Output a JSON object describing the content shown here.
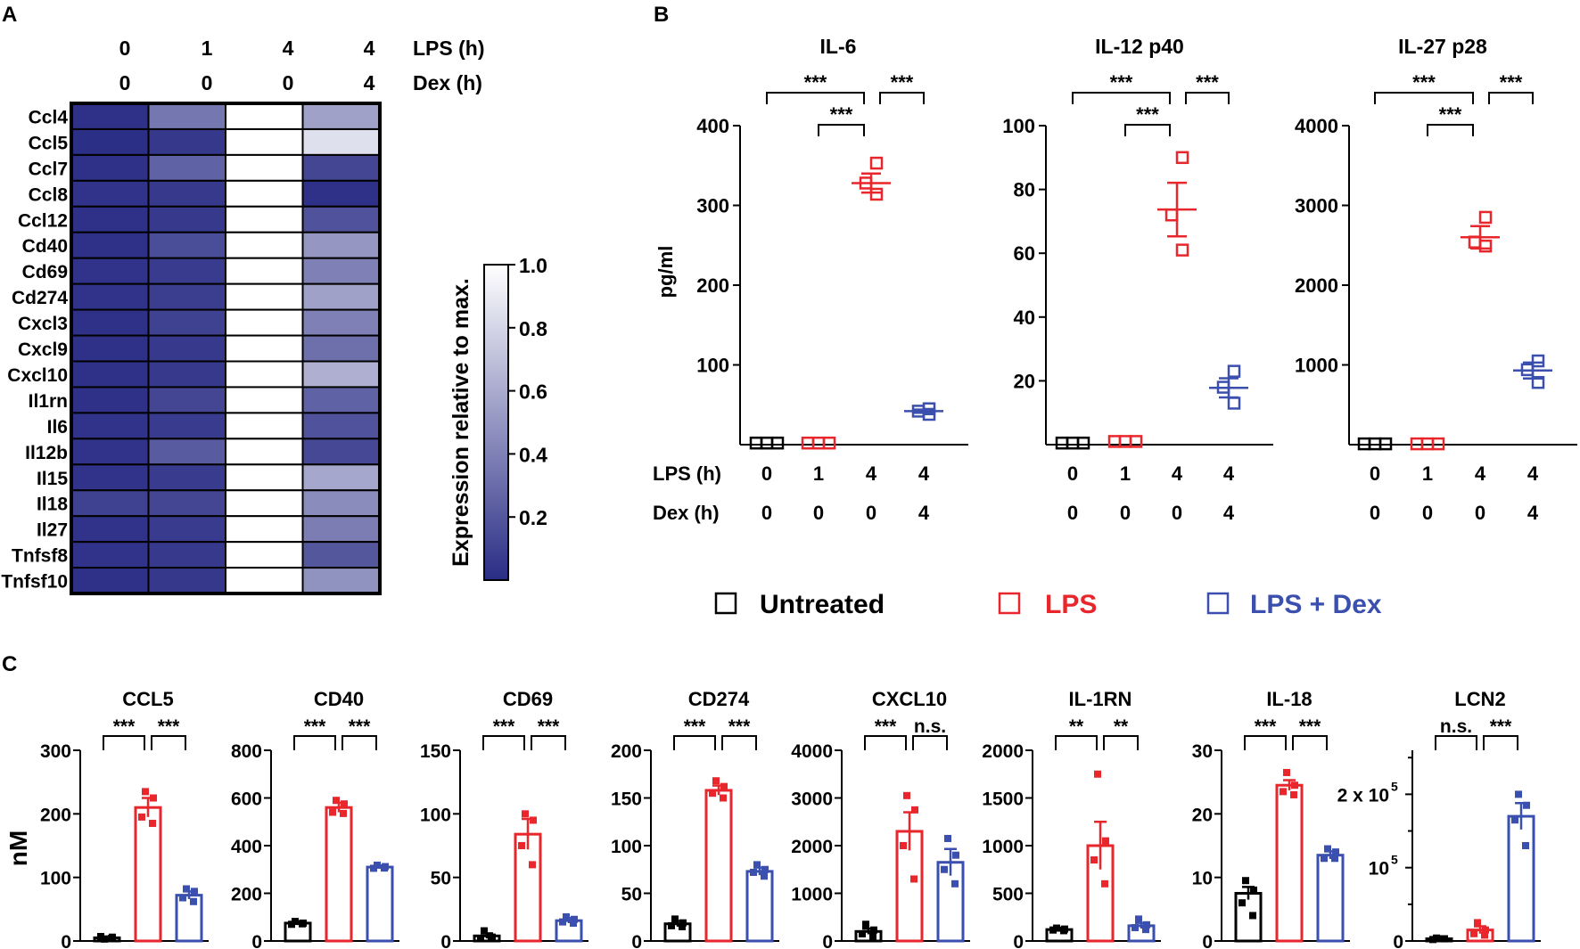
{
  "colors": {
    "untreated": "#000000",
    "lps": "#e8262b",
    "lps_dex": "#3b4fae",
    "heat_low": "#2a2d85",
    "heat_high": "#ffffff"
  },
  "panel_labels": {
    "a": "A",
    "b": "B",
    "c": "C"
  },
  "legend": {
    "untreated": "Untreated",
    "lps": "LPS",
    "lps_dex": "LPS + Dex"
  },
  "conditions": {
    "lps_label": "LPS (h)",
    "dex_label": "Dex (h)",
    "lps": [
      "0",
      "1",
      "4",
      "4"
    ],
    "dex": [
      "0",
      "0",
      "0",
      "4"
    ]
  },
  "chart_data": [
    {
      "type": "heatmap",
      "panel": "A",
      "rows": [
        "Ccl4",
        "Ccl5",
        "Ccl7",
        "Ccl8",
        "Ccl12",
        "Cd40",
        "Cd69",
        "Cd274",
        "Cxcl3",
        "Cxcl9",
        "Cxcl10",
        "Il1rn",
        "Il6",
        "Il12b",
        "Il15",
        "Il18",
        "Il27",
        "Tnfsf8",
        "Tnfsf10"
      ],
      "columns": [
        "LPS 0h / Dex 0h",
        "LPS 1h / Dex 0h",
        "LPS 4h / Dex 0h",
        "LPS 4h / Dex 4h"
      ],
      "values": [
        [
          0.02,
          0.35,
          1.0,
          0.55
        ],
        [
          0.01,
          0.05,
          1.0,
          0.85
        ],
        [
          0.02,
          0.25,
          1.0,
          0.12
        ],
        [
          0.03,
          0.06,
          1.0,
          0.02
        ],
        [
          0.02,
          0.06,
          1.0,
          0.18
        ],
        [
          0.02,
          0.15,
          1.0,
          0.5
        ],
        [
          0.03,
          0.07,
          1.0,
          0.4
        ],
        [
          0.03,
          0.08,
          1.0,
          0.55
        ],
        [
          0.02,
          0.1,
          1.0,
          0.4
        ],
        [
          0.02,
          0.06,
          1.0,
          0.32
        ],
        [
          0.02,
          0.06,
          1.0,
          0.62
        ],
        [
          0.02,
          0.12,
          1.0,
          0.25
        ],
        [
          0.03,
          0.07,
          1.0,
          0.18
        ],
        [
          0.03,
          0.22,
          1.0,
          0.13
        ],
        [
          0.03,
          0.07,
          1.0,
          0.58
        ],
        [
          0.1,
          0.12,
          1.0,
          0.45
        ],
        [
          0.03,
          0.07,
          1.0,
          0.38
        ],
        [
          0.03,
          0.06,
          1.0,
          0.2
        ],
        [
          0.02,
          0.05,
          1.0,
          0.48
        ]
      ],
      "colorbar": {
        "label": "Expression relative to max.",
        "ticks": [
          "1.0",
          "0.8",
          "0.6",
          "0.4",
          "0.2"
        ],
        "tick_values": [
          1.0,
          0.8,
          0.6,
          0.4,
          0.2
        ],
        "range": [
          0,
          1
        ]
      }
    },
    {
      "type": "scatter",
      "panel": "B",
      "title": "IL-6",
      "ylabel": "pg/ml",
      "ylim": [
        0,
        400
      ],
      "yticks": [
        "100",
        "200",
        "300",
        "400"
      ],
      "ytick_values": [
        100,
        200,
        300,
        400
      ],
      "groups": [
        {
          "name": "Untreated",
          "points": [
            2,
            2,
            2
          ],
          "mean": 2,
          "sem": 0
        },
        {
          "name": "LPS 1h",
          "points": [
            2,
            2,
            2
          ],
          "mean": 2,
          "sem": 0
        },
        {
          "name": "LPS 4h",
          "points": [
            353,
            328,
            314
          ],
          "mean": 328,
          "sem": 12
        },
        {
          "name": "LPS + Dex",
          "points": [
            45,
            42,
            38
          ],
          "mean": 42,
          "sem": 2
        }
      ],
      "brackets": [
        {
          "from": 0,
          "to": 2,
          "label": "***",
          "level": 2
        },
        {
          "from": 2,
          "to": 3,
          "label": "***",
          "level": 2
        },
        {
          "from": 1,
          "to": 2,
          "label": "***",
          "level": 1
        }
      ]
    },
    {
      "type": "scatter",
      "panel": "B",
      "title": "IL-12 p40",
      "ylabel": "",
      "ylim": [
        0,
        100
      ],
      "yticks": [
        "20",
        "40",
        "60",
        "80",
        "100"
      ],
      "ytick_values": [
        20,
        40,
        60,
        80,
        100
      ],
      "groups": [
        {
          "name": "Untreated",
          "points": [
            0.5,
            0.5,
            0.5
          ],
          "mean": 0.5,
          "sem": 0
        },
        {
          "name": "LPS 1h",
          "points": [
            1,
            1,
            1
          ],
          "mean": 1,
          "sem": 0
        },
        {
          "name": "LPS 4h",
          "points": [
            90,
            72,
            61
          ],
          "mean": 73.7,
          "sem": 8.4
        },
        {
          "name": "LPS + Dex",
          "points": [
            23,
            18,
            13
          ],
          "mean": 17.8,
          "sem": 3
        }
      ],
      "brackets": [
        {
          "from": 0,
          "to": 2,
          "label": "***",
          "level": 2
        },
        {
          "from": 2,
          "to": 3,
          "label": "***",
          "level": 2
        },
        {
          "from": 1,
          "to": 2,
          "label": "***",
          "level": 1
        }
      ]
    },
    {
      "type": "scatter",
      "panel": "B",
      "title": "IL-27 p28",
      "ylabel": "",
      "ylim": [
        0,
        4000
      ],
      "yticks": [
        "1000",
        "2000",
        "3000",
        "4000"
      ],
      "ytick_values": [
        1000,
        2000,
        3000,
        4000
      ],
      "groups": [
        {
          "name": "Untreated",
          "points": [
            10,
            10,
            10
          ],
          "mean": 10,
          "sem": 0
        },
        {
          "name": "LPS 1h",
          "points": [
            10,
            10,
            10
          ],
          "mean": 10,
          "sem": 0
        },
        {
          "name": "LPS 4h",
          "points": [
            2850,
            2540,
            2490
          ],
          "mean": 2600,
          "sem": 140
        },
        {
          "name": "LPS + Dex",
          "points": [
            1050,
            940,
            780
          ],
          "mean": 930,
          "sem": 100
        }
      ],
      "brackets": [
        {
          "from": 0,
          "to": 2,
          "label": "***",
          "level": 2
        },
        {
          "from": 2,
          "to": 3,
          "label": "***",
          "level": 2
        },
        {
          "from": 1,
          "to": 2,
          "label": "***",
          "level": 1
        }
      ]
    },
    {
      "type": "bar",
      "panel": "C",
      "title": "CCL5",
      "ylabel": "nM",
      "ylim": [
        0,
        300
      ],
      "yticks": [
        "0",
        "100",
        "200",
        "300"
      ],
      "ytick_values": [
        0,
        100,
        200,
        300
      ],
      "bars": [
        {
          "mean": 5,
          "sem": 2,
          "points": [
            3,
            6,
            7,
            4
          ]
        },
        {
          "mean": 210,
          "sem": 15,
          "points": [
            235,
            225,
            195,
            185
          ]
        },
        {
          "mean": 72,
          "sem": 6,
          "points": [
            82,
            78,
            68,
            62
          ]
        }
      ],
      "brackets": [
        {
          "from": 0,
          "to": 1,
          "label": "***"
        },
        {
          "from": 1,
          "to": 2,
          "label": "***"
        }
      ]
    },
    {
      "type": "bar",
      "panel": "C",
      "title": "CD40",
      "ylim": [
        0,
        800
      ],
      "yticks": [
        "0",
        "200",
        "400",
        "600",
        "800"
      ],
      "ytick_values": [
        0,
        200,
        400,
        600,
        800
      ],
      "bars": [
        {
          "mean": 75,
          "sem": 8,
          "points": [
            82,
            75,
            70,
            72
          ]
        },
        {
          "mean": 560,
          "sem": 20,
          "points": [
            590,
            575,
            540,
            535
          ]
        },
        {
          "mean": 310,
          "sem": 6,
          "points": [
            318,
            312,
            305,
            306
          ]
        }
      ],
      "brackets": [
        {
          "from": 0,
          "to": 1,
          "label": "***"
        },
        {
          "from": 1,
          "to": 2,
          "label": "***"
        }
      ]
    },
    {
      "type": "bar",
      "panel": "C",
      "title": "CD69",
      "ylim": [
        0,
        150
      ],
      "yticks": [
        "0",
        "50",
        "100",
        "150"
      ],
      "ytick_values": [
        0,
        50,
        100,
        150
      ],
      "bars": [
        {
          "mean": 4,
          "sem": 2,
          "points": [
            8,
            3,
            2,
            3
          ]
        },
        {
          "mean": 84,
          "sem": 12,
          "points": [
            100,
            95,
            75,
            60
          ]
        },
        {
          "mean": 16,
          "sem": 2,
          "points": [
            19,
            17,
            15,
            14
          ]
        }
      ],
      "brackets": [
        {
          "from": 0,
          "to": 1,
          "label": "***"
        },
        {
          "from": 1,
          "to": 2,
          "label": "***"
        }
      ]
    },
    {
      "type": "bar",
      "panel": "C",
      "title": "CD274",
      "ylim": [
        0,
        200
      ],
      "yticks": [
        "0",
        "50",
        "100",
        "150",
        "200"
      ],
      "ytick_values": [
        0,
        50,
        100,
        150,
        200
      ],
      "bars": [
        {
          "mean": 18,
          "sem": 3,
          "points": [
            23,
            19,
            16,
            15
          ]
        },
        {
          "mean": 158,
          "sem": 5,
          "points": [
            168,
            162,
            155,
            150
          ]
        },
        {
          "mean": 73,
          "sem": 4,
          "points": [
            80,
            75,
            72,
            68
          ]
        }
      ],
      "brackets": [
        {
          "from": 0,
          "to": 1,
          "label": "***"
        },
        {
          "from": 1,
          "to": 2,
          "label": "***"
        }
      ]
    },
    {
      "type": "bar",
      "panel": "C",
      "title": "CXCL10",
      "ylim": [
        0,
        4000
      ],
      "yticks": [
        "0",
        "1000",
        "2000",
        "3000",
        "4000"
      ],
      "ytick_values": [
        0,
        1000,
        2000,
        3000,
        4000
      ],
      "bars": [
        {
          "mean": 200,
          "sem": 60,
          "points": [
            350,
            230,
            150,
            100
          ]
        },
        {
          "mean": 2300,
          "sem": 400,
          "points": [
            3050,
            2750,
            2000,
            1300
          ]
        },
        {
          "mean": 1650,
          "sem": 280,
          "points": [
            2150,
            1800,
            1500,
            1200
          ]
        }
      ],
      "brackets": [
        {
          "from": 0,
          "to": 1,
          "label": "***"
        },
        {
          "from": 1,
          "to": 2,
          "label": "n.s."
        }
      ]
    },
    {
      "type": "bar",
      "panel": "C",
      "title": "IL-1RN",
      "ylim": [
        0,
        2000
      ],
      "yticks": [
        "0",
        "500",
        "1000",
        "1500",
        "2000"
      ],
      "ytick_values": [
        0,
        500,
        1000,
        1500,
        2000
      ],
      "bars": [
        {
          "mean": 120,
          "sem": 20,
          "points": [
            135,
            125,
            115,
            108
          ]
        },
        {
          "mean": 1000,
          "sem": 250,
          "points": [
            1750,
            1050,
            850,
            600
          ]
        },
        {
          "mean": 160,
          "sem": 30,
          "points": [
            230,
            170,
            140,
            120
          ]
        }
      ],
      "brackets": [
        {
          "from": 0,
          "to": 1,
          "label": "**"
        },
        {
          "from": 1,
          "to": 2,
          "label": "**"
        }
      ]
    },
    {
      "type": "bar",
      "panel": "C",
      "title": "IL-18",
      "ylim": [
        0,
        30
      ],
      "yticks": [
        "0",
        "10",
        "20",
        "30"
      ],
      "ytick_values": [
        0,
        10,
        20,
        30
      ],
      "bars": [
        {
          "mean": 7.5,
          "sem": 1,
          "points": [
            9.5,
            8,
            6,
            4
          ]
        },
        {
          "mean": 24.5,
          "sem": 0.8,
          "points": [
            26.5,
            24.5,
            23.5,
            23
          ]
        },
        {
          "mean": 13.5,
          "sem": 0.6,
          "points": [
            14.5,
            14,
            13,
            13
          ]
        }
      ],
      "brackets": [
        {
          "from": 0,
          "to": 1,
          "label": "***"
        },
        {
          "from": 1,
          "to": 2,
          "label": "***"
        }
      ]
    },
    {
      "type": "bar",
      "panel": "C",
      "title": "LCN2",
      "ylim": [
        0,
        260000
      ],
      "yticks": [
        "0",
        "10",
        "2 x 10"
      ],
      "ytick_exponent": "5",
      "ytick_values": [
        0,
        100000,
        200000
      ],
      "bars": [
        {
          "mean": 3000,
          "sem": 1000,
          "points": [
            4000,
            3000,
            2000,
            3000
          ]
        },
        {
          "mean": 15000,
          "sem": 5000,
          "points": [
            25000,
            15000,
            10000,
            8000
          ]
        },
        {
          "mean": 170000,
          "sem": 18000,
          "points": [
            200000,
            185000,
            165000,
            130000
          ]
        }
      ],
      "brackets": [
        {
          "from": 0,
          "to": 1,
          "label": "n.s."
        },
        {
          "from": 1,
          "to": 2,
          "label": "***"
        }
      ]
    }
  ]
}
